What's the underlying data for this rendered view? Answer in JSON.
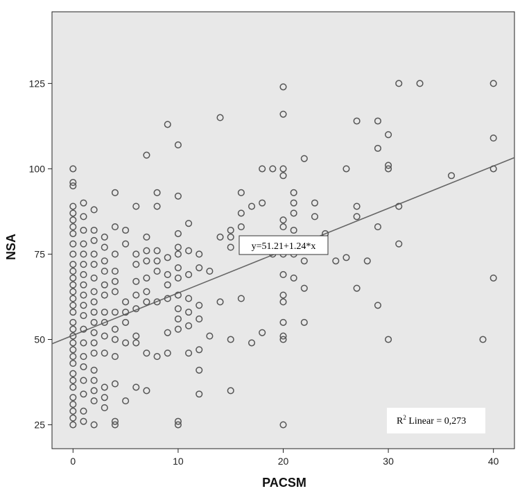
{
  "chart_data": {
    "type": "scatter",
    "xlabel": "PACSM",
    "ylabel": "NSA",
    "xlim": [
      -2,
      42
    ],
    "ylim": [
      18,
      146
    ],
    "xticks": [
      0,
      10,
      20,
      30,
      40
    ],
    "yticks": [
      25,
      50,
      75,
      100,
      125
    ],
    "grid": false,
    "background": "#e8e8e8",
    "marker_color": "#555555",
    "line_color": "#666666",
    "fit_line": {
      "intercept": 51.21,
      "slope": 1.24,
      "label": "y=51.21+1.24*x"
    },
    "r2_label": {
      "prefix": "R",
      "sup": "2",
      "text": " Linear = 0,273"
    },
    "points": [
      [
        0,
        100
      ],
      [
        0,
        96
      ],
      [
        0,
        95
      ],
      [
        0,
        89
      ],
      [
        0,
        87
      ],
      [
        0,
        85
      ],
      [
        0,
        83
      ],
      [
        0,
        81
      ],
      [
        0,
        78
      ],
      [
        0,
        75
      ],
      [
        0,
        72
      ],
      [
        0,
        70
      ],
      [
        0,
        68
      ],
      [
        0,
        66
      ],
      [
        0,
        64
      ],
      [
        0,
        62
      ],
      [
        0,
        60
      ],
      [
        0,
        58
      ],
      [
        0,
        55
      ],
      [
        0,
        53
      ],
      [
        0,
        51
      ],
      [
        0,
        49
      ],
      [
        0,
        47
      ],
      [
        0,
        45
      ],
      [
        0,
        43
      ],
      [
        0,
        40
      ],
      [
        0,
        38
      ],
      [
        0,
        36
      ],
      [
        0,
        33
      ],
      [
        0,
        31
      ],
      [
        0,
        29
      ],
      [
        0,
        27
      ],
      [
        0,
        25
      ],
      [
        1,
        90
      ],
      [
        1,
        86
      ],
      [
        1,
        82
      ],
      [
        1,
        78
      ],
      [
        1,
        75
      ],
      [
        1,
        72
      ],
      [
        1,
        69
      ],
      [
        1,
        66
      ],
      [
        1,
        63
      ],
      [
        1,
        60
      ],
      [
        1,
        57
      ],
      [
        1,
        53
      ],
      [
        1,
        49
      ],
      [
        1,
        45
      ],
      [
        1,
        42
      ],
      [
        1,
        38
      ],
      [
        1,
        34
      ],
      [
        1,
        29
      ],
      [
        1,
        26
      ],
      [
        2,
        88
      ],
      [
        2,
        82
      ],
      [
        2,
        79
      ],
      [
        2,
        75
      ],
      [
        2,
        72
      ],
      [
        2,
        68
      ],
      [
        2,
        64
      ],
      [
        2,
        61
      ],
      [
        2,
        58
      ],
      [
        2,
        55
      ],
      [
        2,
        52
      ],
      [
        2,
        49
      ],
      [
        2,
        46
      ],
      [
        2,
        41
      ],
      [
        2,
        38
      ],
      [
        2,
        35
      ],
      [
        2,
        32
      ],
      [
        2,
        25
      ],
      [
        3,
        80
      ],
      [
        3,
        77
      ],
      [
        3,
        73
      ],
      [
        3,
        70
      ],
      [
        3,
        66
      ],
      [
        3,
        63
      ],
      [
        3,
        58
      ],
      [
        3,
        55
      ],
      [
        3,
        51
      ],
      [
        3,
        46
      ],
      [
        3,
        36
      ],
      [
        3,
        33
      ],
      [
        3,
        30
      ],
      [
        4,
        93
      ],
      [
        4,
        83
      ],
      [
        4,
        75
      ],
      [
        4,
        70
      ],
      [
        4,
        67
      ],
      [
        4,
        64
      ],
      [
        4,
        58
      ],
      [
        4,
        53
      ],
      [
        4,
        50
      ],
      [
        4,
        45
      ],
      [
        4,
        37
      ],
      [
        4,
        26
      ],
      [
        4,
        25
      ],
      [
        5,
        82
      ],
      [
        5,
        78
      ],
      [
        5,
        61
      ],
      [
        5,
        58
      ],
      [
        5,
        55
      ],
      [
        5,
        49
      ],
      [
        5,
        32
      ],
      [
        6,
        89
      ],
      [
        6,
        75
      ],
      [
        6,
        72
      ],
      [
        6,
        67
      ],
      [
        6,
        63
      ],
      [
        6,
        59
      ],
      [
        6,
        51
      ],
      [
        6,
        49
      ],
      [
        6,
        36
      ],
      [
        7,
        104
      ],
      [
        7,
        80
      ],
      [
        7,
        76
      ],
      [
        7,
        73
      ],
      [
        7,
        68
      ],
      [
        7,
        64
      ],
      [
        7,
        61
      ],
      [
        7,
        46
      ],
      [
        7,
        35
      ],
      [
        8,
        93
      ],
      [
        8,
        89
      ],
      [
        8,
        76
      ],
      [
        8,
        73
      ],
      [
        8,
        70
      ],
      [
        8,
        61
      ],
      [
        8,
        45
      ],
      [
        9,
        113
      ],
      [
        9,
        74
      ],
      [
        9,
        69
      ],
      [
        9,
        66
      ],
      [
        9,
        62
      ],
      [
        9,
        52
      ],
      [
        9,
        46
      ],
      [
        10,
        107
      ],
      [
        10,
        92
      ],
      [
        10,
        81
      ],
      [
        10,
        77
      ],
      [
        10,
        75
      ],
      [
        10,
        71
      ],
      [
        10,
        68
      ],
      [
        10,
        63
      ],
      [
        10,
        59
      ],
      [
        10,
        56
      ],
      [
        10,
        53
      ],
      [
        10,
        26
      ],
      [
        10,
        25
      ],
      [
        11,
        84
      ],
      [
        11,
        76
      ],
      [
        11,
        69
      ],
      [
        11,
        62
      ],
      [
        11,
        58
      ],
      [
        11,
        54
      ],
      [
        11,
        46
      ],
      [
        12,
        75
      ],
      [
        12,
        71
      ],
      [
        12,
        60
      ],
      [
        12,
        56
      ],
      [
        12,
        47
      ],
      [
        12,
        41
      ],
      [
        12,
        34
      ],
      [
        13,
        70
      ],
      [
        13,
        51
      ],
      [
        14,
        115
      ],
      [
        14,
        80
      ],
      [
        14,
        61
      ],
      [
        15,
        82
      ],
      [
        15,
        80
      ],
      [
        15,
        77
      ],
      [
        15,
        50
      ],
      [
        15,
        35
      ],
      [
        16,
        93
      ],
      [
        16,
        87
      ],
      [
        16,
        83
      ],
      [
        16,
        62
      ],
      [
        17,
        89
      ],
      [
        17,
        49
      ],
      [
        18,
        100
      ],
      [
        18,
        90
      ],
      [
        18,
        52
      ],
      [
        19,
        100
      ],
      [
        19,
        75
      ],
      [
        20,
        124
      ],
      [
        20,
        116
      ],
      [
        20,
        100
      ],
      [
        20,
        98
      ],
      [
        20,
        85
      ],
      [
        20,
        83
      ],
      [
        20,
        79
      ],
      [
        20,
        75
      ],
      [
        20,
        69
      ],
      [
        20,
        63
      ],
      [
        20,
        61
      ],
      [
        20,
        55
      ],
      [
        20,
        51
      ],
      [
        20,
        50
      ],
      [
        20,
        25
      ],
      [
        21,
        93
      ],
      [
        21,
        90
      ],
      [
        21,
        87
      ],
      [
        21,
        82
      ],
      [
        21,
        75
      ],
      [
        21,
        68
      ],
      [
        22,
        103
      ],
      [
        22,
        73
      ],
      [
        22,
        65
      ],
      [
        22,
        55
      ],
      [
        23,
        90
      ],
      [
        23,
        86
      ],
      [
        23,
        78
      ],
      [
        24,
        81
      ],
      [
        25,
        73
      ],
      [
        26,
        100
      ],
      [
        26,
        74
      ],
      [
        27,
        114
      ],
      [
        27,
        89
      ],
      [
        27,
        86
      ],
      [
        27,
        65
      ],
      [
        28,
        73
      ],
      [
        29,
        114
      ],
      [
        29,
        106
      ],
      [
        29,
        83
      ],
      [
        29,
        60
      ],
      [
        30,
        110
      ],
      [
        30,
        101
      ],
      [
        30,
        100
      ],
      [
        30,
        50
      ],
      [
        31,
        125
      ],
      [
        31,
        89
      ],
      [
        31,
        78
      ],
      [
        33,
        125
      ],
      [
        36,
        98
      ],
      [
        39,
        50
      ],
      [
        40,
        125
      ],
      [
        40,
        109
      ],
      [
        40,
        100
      ],
      [
        40,
        68
      ]
    ]
  }
}
